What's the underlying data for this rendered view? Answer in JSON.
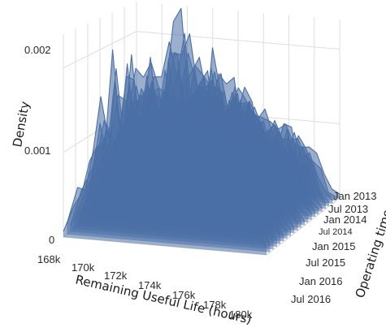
{
  "chart_data": {
    "type": "surface",
    "axes": {
      "x": {
        "label": "Remaining Useful Life (hours)",
        "ticks": [
          "168k",
          "170k",
          "172k",
          "174k",
          "176k",
          "178k",
          "180k"
        ],
        "values": [
          168000,
          170000,
          172000,
          174000,
          176000,
          178000,
          180000
        ]
      },
      "y": {
        "label": "Operating time",
        "ticks": [
          "Jan 2013",
          "Jul 2013",
          "Jan 2014",
          "Jul 2014",
          "Jan 2015",
          "Jul 2015",
          "Jan 2016",
          "Jul 2016"
        ]
      },
      "z": {
        "label": "Density",
        "ticks": [
          "0",
          "0.001",
          "0.002"
        ],
        "values": [
          0,
          0.001,
          0.002
        ],
        "range": [
          0,
          0.0024
        ]
      }
    },
    "series": [
      {
        "profile_x": [
          167800,
          168500,
          169000,
          169500,
          170000,
          170500,
          171000,
          171500,
          172000,
          172500,
          173000,
          173500,
          174000,
          174500,
          175000,
          175500,
          176000,
          176500,
          177000,
          177500,
          178000,
          178500,
          179000,
          179500,
          180000,
          180500,
          181000
        ],
        "profile_density": [
          0.0001,
          0.0005,
          0.0008,
          0.0011,
          0.0014,
          0.0016,
          0.0017,
          0.0017,
          0.0017,
          0.0016,
          0.0017,
          0.0018,
          0.0019,
          0.0021,
          0.0023,
          0.0021,
          0.0019,
          0.0017,
          0.0016,
          0.0016,
          0.0015,
          0.0015,
          0.0014,
          0.0012,
          0.0008,
          0.0003,
          0.0001
        ]
      }
    ],
    "colors": {
      "surface": "#4a6fa5",
      "grid": "#dedede"
    }
  }
}
